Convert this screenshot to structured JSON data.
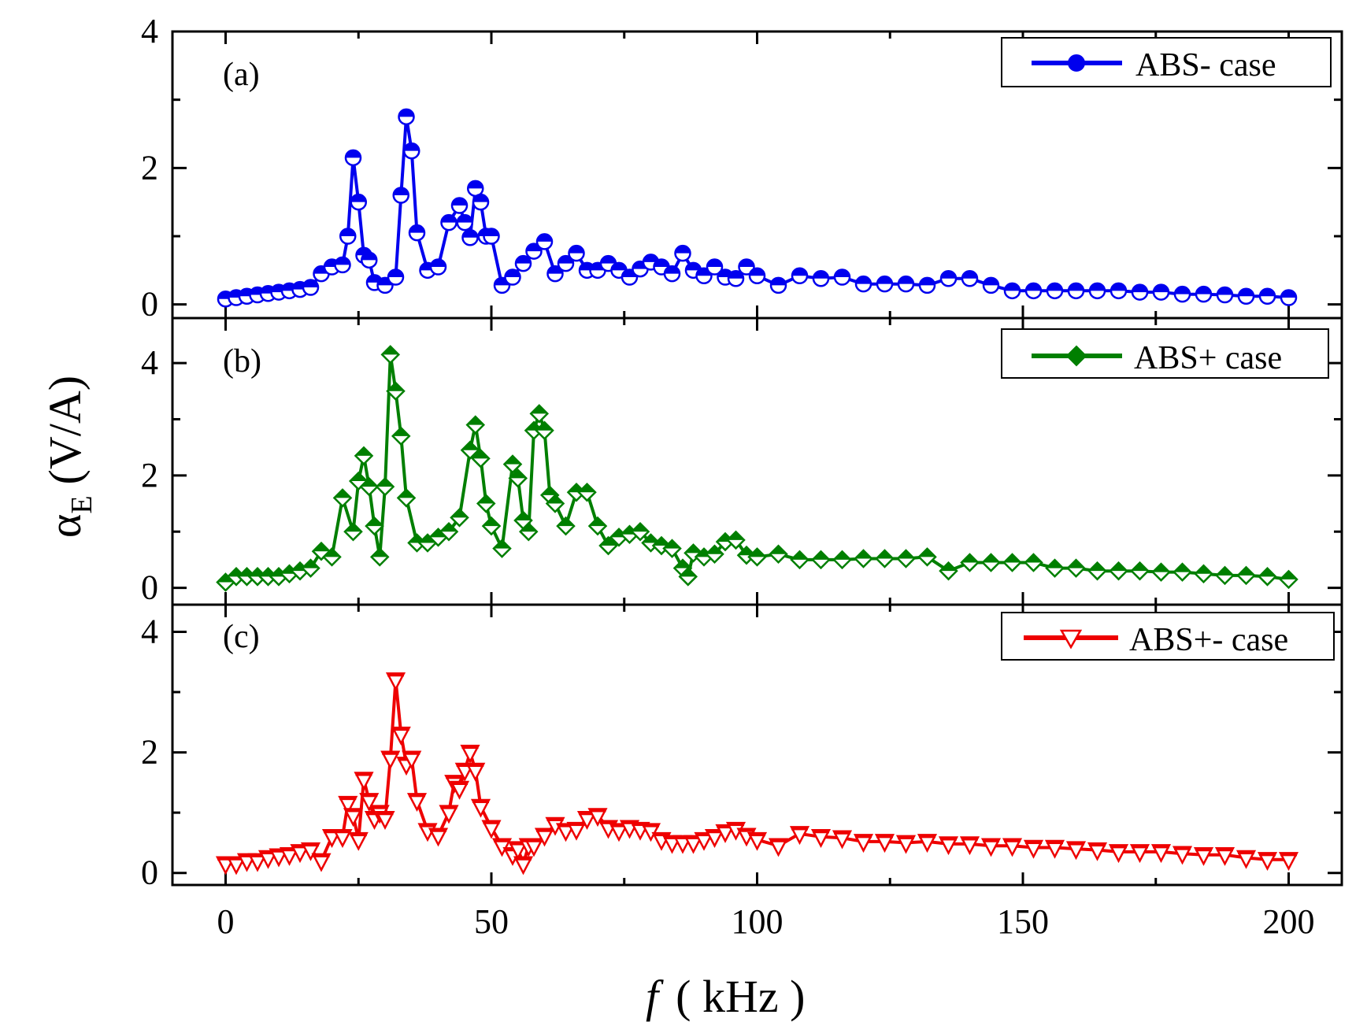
{
  "chart_data": {
    "type": "line",
    "xlabel_italic": "f",
    "xlabel_rest": "( kHz )",
    "ylabel_main": "α",
    "ylabel_sub": "E",
    "ylabel_unit": "(V/A)",
    "xlim": [
      -10,
      210
    ],
    "x_ticks": [
      "0",
      "50",
      "100",
      "150",
      "200"
    ],
    "x_tick_values": [
      0,
      50,
      100,
      150,
      200
    ],
    "grid": false,
    "panels": [
      {
        "label": "(a)",
        "legend": "ABS- case",
        "legend_position": "top-right",
        "marker": "circle",
        "color": "#0000ee",
        "ylim": [
          -0.2,
          4
        ],
        "y_ticks": [
          "0",
          "2",
          "4"
        ],
        "y_tick_values": [
          0,
          2,
          4
        ],
        "x": [
          0,
          2,
          4,
          6,
          8,
          10,
          12,
          14,
          16,
          18,
          20,
          22,
          23,
          24,
          25,
          26,
          27,
          28,
          30,
          32,
          33,
          34,
          35,
          36,
          38,
          40,
          42,
          44,
          45,
          46,
          47,
          48,
          49,
          50,
          52,
          54,
          56,
          58,
          60,
          62,
          64,
          66,
          68,
          70,
          72,
          74,
          76,
          78,
          80,
          82,
          84,
          86,
          88,
          90,
          92,
          94,
          96,
          98,
          100,
          104,
          108,
          112,
          116,
          120,
          124,
          128,
          132,
          136,
          140,
          144,
          148,
          152,
          156,
          160,
          164,
          168,
          172,
          176,
          180,
          184,
          188,
          192,
          196,
          200
        ],
        "y": [
          0.08,
          0.1,
          0.12,
          0.14,
          0.16,
          0.18,
          0.2,
          0.22,
          0.25,
          0.45,
          0.55,
          0.58,
          1.0,
          2.15,
          1.5,
          0.72,
          0.65,
          0.32,
          0.28,
          0.4,
          1.6,
          2.75,
          2.25,
          1.05,
          0.5,
          0.55,
          1.2,
          1.45,
          1.2,
          0.98,
          1.7,
          1.5,
          1.0,
          1.0,
          0.28,
          0.4,
          0.6,
          0.78,
          0.92,
          0.45,
          0.6,
          0.75,
          0.5,
          0.5,
          0.6,
          0.5,
          0.4,
          0.52,
          0.62,
          0.55,
          0.45,
          0.75,
          0.5,
          0.42,
          0.55,
          0.4,
          0.38,
          0.55,
          0.42,
          0.28,
          0.42,
          0.38,
          0.4,
          0.3,
          0.3,
          0.3,
          0.28,
          0.38,
          0.38,
          0.28,
          0.2,
          0.2,
          0.2,
          0.2,
          0.2,
          0.2,
          0.18,
          0.18,
          0.15,
          0.15,
          0.14,
          0.12,
          0.12,
          0.1
        ]
      },
      {
        "label": "(b)",
        "legend": "ABS+ case",
        "legend_position": "top-right",
        "marker": "diamond",
        "color": "#007f00",
        "ylim": [
          -0.3,
          4.8
        ],
        "y_ticks": [
          "0",
          "2",
          "4"
        ],
        "y_tick_values": [
          0,
          2,
          4
        ],
        "x": [
          0,
          2,
          4,
          6,
          8,
          10,
          12,
          14,
          16,
          18,
          20,
          22,
          24,
          25,
          26,
          27,
          28,
          29,
          30,
          31,
          32,
          33,
          34,
          36,
          38,
          40,
          42,
          44,
          46,
          47,
          48,
          49,
          50,
          52,
          54,
          55,
          56,
          57,
          58,
          59,
          60,
          61,
          62,
          64,
          66,
          68,
          70,
          72,
          74,
          76,
          78,
          80,
          82,
          84,
          86,
          87,
          88,
          90,
          92,
          94,
          96,
          98,
          100,
          104,
          108,
          112,
          116,
          120,
          124,
          128,
          132,
          136,
          140,
          144,
          148,
          152,
          156,
          160,
          164,
          168,
          172,
          176,
          180,
          184,
          188,
          192,
          196,
          200
        ],
        "y": [
          0.1,
          0.2,
          0.2,
          0.2,
          0.2,
          0.2,
          0.25,
          0.3,
          0.35,
          0.65,
          0.55,
          1.6,
          1.0,
          1.9,
          2.35,
          1.8,
          1.1,
          0.55,
          1.8,
          4.15,
          3.5,
          2.7,
          1.6,
          0.8,
          0.8,
          0.9,
          1.0,
          1.25,
          2.45,
          2.9,
          2.3,
          1.5,
          1.1,
          0.7,
          2.2,
          1.95,
          1.2,
          1.0,
          2.8,
          3.1,
          2.8,
          1.65,
          1.5,
          1.1,
          1.7,
          1.7,
          1.1,
          0.75,
          0.9,
          0.95,
          1.0,
          0.8,
          0.75,
          0.7,
          0.35,
          0.2,
          0.62,
          0.55,
          0.6,
          0.82,
          0.85,
          0.58,
          0.55,
          0.6,
          0.5,
          0.5,
          0.5,
          0.52,
          0.52,
          0.52,
          0.55,
          0.3,
          0.45,
          0.45,
          0.45,
          0.45,
          0.35,
          0.35,
          0.3,
          0.3,
          0.3,
          0.28,
          0.28,
          0.25,
          0.22,
          0.22,
          0.2,
          0.15
        ]
      },
      {
        "label": "(c)",
        "legend": "ABS+- case",
        "legend_position": "top-right",
        "marker": "triangle-down",
        "color": "#ee0000",
        "ylim": [
          -0.2,
          4.45
        ],
        "y_ticks": [
          "0",
          "2",
          "4"
        ],
        "y_tick_values": [
          0,
          2,
          4
        ],
        "x": [
          0,
          2,
          4,
          6,
          8,
          10,
          12,
          14,
          16,
          18,
          20,
          22,
          23,
          24,
          25,
          26,
          27,
          28,
          29,
          30,
          31,
          32,
          33,
          34,
          35,
          36,
          38,
          40,
          42,
          43,
          44,
          45,
          46,
          47,
          48,
          50,
          52,
          54,
          55,
          56,
          57,
          58,
          60,
          62,
          64,
          66,
          68,
          70,
          72,
          74,
          76,
          78,
          80,
          82,
          84,
          86,
          88,
          90,
          92,
          94,
          96,
          98,
          100,
          104,
          108,
          112,
          116,
          120,
          124,
          128,
          132,
          136,
          140,
          144,
          148,
          152,
          156,
          160,
          164,
          168,
          172,
          176,
          180,
          184,
          188,
          192,
          196,
          200
        ],
        "y": [
          0.15,
          0.15,
          0.2,
          0.2,
          0.25,
          0.28,
          0.3,
          0.35,
          0.38,
          0.2,
          0.6,
          0.6,
          1.15,
          0.95,
          0.55,
          1.55,
          1.2,
          0.9,
          1.0,
          0.9,
          1.9,
          3.2,
          2.3,
          1.8,
          1.9,
          1.2,
          0.7,
          0.62,
          1.0,
          1.5,
          1.4,
          1.7,
          2.0,
          1.7,
          1.1,
          0.75,
          0.45,
          0.3,
          0.4,
          0.15,
          0.45,
          0.45,
          0.62,
          0.8,
          0.7,
          0.72,
          0.9,
          0.95,
          0.75,
          0.7,
          0.75,
          0.72,
          0.7,
          0.55,
          0.5,
          0.5,
          0.5,
          0.55,
          0.6,
          0.68,
          0.72,
          0.62,
          0.55,
          0.45,
          0.65,
          0.6,
          0.58,
          0.52,
          0.52,
          0.5,
          0.52,
          0.48,
          0.48,
          0.45,
          0.45,
          0.42,
          0.42,
          0.4,
          0.38,
          0.35,
          0.35,
          0.35,
          0.32,
          0.3,
          0.3,
          0.25,
          0.22,
          0.22
        ]
      }
    ]
  }
}
